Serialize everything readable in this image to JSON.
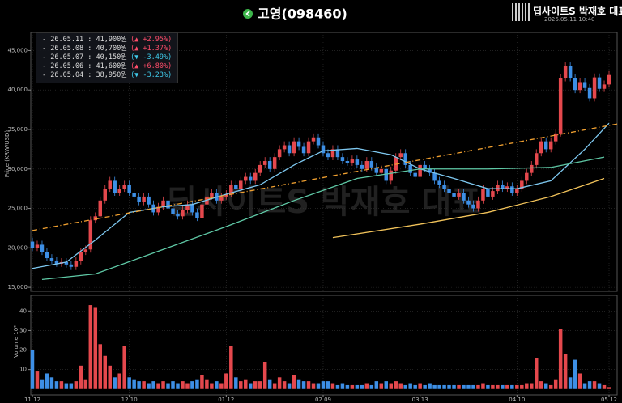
{
  "chart_data": {
    "type": "candlestick",
    "title": "고영(098460)",
    "watermark": "딥사이트S 박재호 대표",
    "brand": {
      "name": "딥사이트S 박재호 대표",
      "timestamp": "2026.05.11 10:40"
    },
    "ylabel": "Price (KRW/USD)",
    "volume_label": "Volume 10⁶",
    "legend": [
      {
        "text": "- 26.05.11 : 41,900원",
        "change": "(▲ +2.95%)",
        "color": "#ff4d6a"
      },
      {
        "text": "- 26.05.08 : 40,700원",
        "change": "(▲ +1.37%)",
        "color": "#ff4d6a"
      },
      {
        "text": "- 26.05.07 : 40,150원",
        "change": "(▼ -3.49%)",
        "color": "#3fc8e8"
      },
      {
        "text": "- 26.05.06 : 41,600원",
        "change": "(▲ +6.80%)",
        "color": "#ff4d6a"
      },
      {
        "text": "- 26.05.04 : 38,950원",
        "change": "(▼ -3.23%)",
        "color": "#3fc8e8"
      }
    ],
    "up_color": "#e5484d",
    "down_color": "#3d8fe6",
    "xlim": [
      0,
      119
    ],
    "xticks": [
      {
        "value": 0,
        "label": "11.12"
      },
      {
        "value": 20,
        "label": "12.10"
      },
      {
        "value": 40,
        "label": "01.12"
      },
      {
        "value": 60,
        "label": "02.09"
      },
      {
        "value": 80,
        "label": "03.13"
      },
      {
        "value": 100,
        "label": "04.10"
      },
      {
        "value": 119,
        "label": "05.12"
      }
    ],
    "ylim": [
      14500,
      47300
    ],
    "yticks": [
      {
        "value": 15000,
        "label": "15,000"
      },
      {
        "value": 20000,
        "label": "20,000"
      },
      {
        "value": 25000,
        "label": "25,000"
      },
      {
        "value": 30000,
        "label": "30,000"
      },
      {
        "value": 35000,
        "label": "35,000"
      },
      {
        "value": 40000,
        "label": "40,000"
      },
      {
        "value": 45000,
        "label": "45,000"
      }
    ],
    "volume_ylim": [
      -3,
      48
    ],
    "volume_yticks": [
      10,
      20,
      30,
      40
    ],
    "grid": true,
    "open": [
      20800,
      20000,
      20400,
      19500,
      18700,
      18400,
      18000,
      18200,
      17900,
      17600,
      18300,
      19500,
      19800,
      23500,
      24000,
      26000,
      27500,
      28500,
      27000,
      27500,
      28000,
      27000,
      26500,
      25800,
      26500,
      25500,
      24500,
      25200,
      26000,
      25000,
      24300,
      24000,
      24800,
      25500,
      24500,
      23800,
      25500,
      26500,
      27000,
      26000,
      26500,
      26800,
      28000,
      27500,
      28500,
      29000,
      28500,
      29500,
      30500,
      31000,
      30000,
      31500,
      32500,
      33000,
      32000,
      33500,
      32800,
      32000,
      33500,
      34000,
      33000,
      32000,
      31500,
      32500,
      31500,
      31000,
      30800,
      31200,
      30500,
      30000,
      31000,
      30200,
      29500,
      30000,
      28500,
      29800,
      31500,
      32000,
      30500,
      29500,
      29000,
      30500,
      30000,
      29500,
      28500,
      28000,
      27500,
      27000,
      26500,
      27000,
      26000,
      25500,
      25000,
      26000,
      27500,
      26500,
      27200,
      28000,
      27500,
      27800,
      27000,
      27500,
      28500,
      29500,
      30500,
      32000,
      33500,
      32500,
      33500,
      34500,
      41500,
      43000,
      41500,
      40000,
      41000,
      40250,
      38950,
      41600,
      40150,
      40700
    ],
    "high": [
      21300,
      20900,
      20900,
      20000,
      19200,
      18900,
      18700,
      18700,
      18400,
      18800,
      20000,
      20300,
      24000,
      24500,
      26500,
      28000,
      29000,
      29000,
      28000,
      28500,
      28500,
      27500,
      27000,
      27000,
      27000,
      26000,
      25700,
      26500,
      26500,
      25500,
      24800,
      25300,
      26000,
      26000,
      25000,
      26000,
      27000,
      27500,
      27500,
      27000,
      27300,
      28500,
      28500,
      29000,
      29500,
      29500,
      30000,
      31000,
      31500,
      31500,
      32000,
      33000,
      33500,
      33500,
      34000,
      34000,
      33300,
      34000,
      34500,
      34500,
      33500,
      32500,
      33000,
      33000,
      32000,
      31500,
      31700,
      31700,
      31000,
      31500,
      31500,
      30700,
      30500,
      30500,
      30300,
      32000,
      32500,
      32500,
      31000,
      30000,
      31000,
      31000,
      30500,
      30000,
      29000,
      28500,
      28000,
      27500,
      27500,
      27500,
      26500,
      26000,
      26500,
      28000,
      28000,
      27700,
      28500,
      28500,
      28300,
      28300,
      28000,
      29000,
      30000,
      31000,
      32500,
      34000,
      34000,
      34000,
      35000,
      42000,
      43500,
      43500,
      42000,
      41500,
      41500,
      40750,
      42100,
      42100,
      41200,
      42400
    ],
    "low": [
      19600,
      19600,
      19100,
      18300,
      18000,
      17600,
      17600,
      17500,
      17200,
      17200,
      17900,
      19100,
      19400,
      23100,
      23600,
      25600,
      27100,
      26600,
      26600,
      27100,
      26600,
      26100,
      25400,
      25400,
      25100,
      24100,
      24100,
      24800,
      24600,
      23900,
      23600,
      23600,
      24400,
      24100,
      23400,
      23400,
      25100,
      26100,
      25600,
      25600,
      26100,
      26400,
      27100,
      27100,
      28100,
      28100,
      28100,
      29100,
      30100,
      29600,
      29600,
      31100,
      32100,
      31600,
      31600,
      32400,
      31600,
      31600,
      33100,
      32600,
      31600,
      31100,
      31100,
      31100,
      30600,
      30400,
      30400,
      30100,
      29600,
      29600,
      29800,
      29100,
      29100,
      28100,
      28100,
      29400,
      31100,
      30100,
      29100,
      28600,
      28600,
      29600,
      29100,
      28100,
      27600,
      27100,
      26600,
      26100,
      26100,
      25600,
      25100,
      24600,
      24600,
      25600,
      26100,
      26100,
      26800,
      27100,
      27100,
      26600,
      26600,
      27100,
      28100,
      29100,
      30100,
      31600,
      32100,
      32100,
      33100,
      34100,
      41100,
      41100,
      39600,
      39600,
      39850,
      38550,
      38550,
      39750,
      39750,
      40300
    ],
    "close": [
      20000,
      20400,
      19500,
      18700,
      18400,
      18000,
      18200,
      17900,
      17600,
      18300,
      19500,
      19800,
      23500,
      24000,
      26000,
      27500,
      28500,
      27000,
      27500,
      28000,
      27000,
      26500,
      25800,
      26500,
      25500,
      24500,
      25200,
      26000,
      25000,
      24300,
      24000,
      24800,
      25500,
      24500,
      23800,
      25500,
      26500,
      27000,
      26000,
      26500,
      26800,
      28000,
      27500,
      28500,
      29000,
      28500,
      29500,
      30500,
      31000,
      30000,
      31500,
      32500,
      33000,
      32000,
      33500,
      32800,
      32000,
      33500,
      34000,
      33000,
      32000,
      31500,
      32500,
      31500,
      31000,
      30800,
      31200,
      30500,
      30000,
      31000,
      30200,
      29500,
      30000,
      28500,
      29800,
      31500,
      32000,
      30500,
      29500,
      29000,
      30500,
      30000,
      29500,
      28500,
      28000,
      27500,
      27000,
      26500,
      27000,
      26000,
      25500,
      25000,
      26000,
      27500,
      26500,
      27200,
      28000,
      27500,
      27800,
      27000,
      27500,
      28500,
      29500,
      30500,
      32000,
      33500,
      32500,
      33500,
      34500,
      41500,
      43000,
      41500,
      40000,
      41000,
      40250,
      38950,
      41600,
      40150,
      40700,
      41900
    ],
    "volume": [
      20,
      9,
      5,
      8,
      6,
      4,
      4,
      3,
      3,
      4,
      12,
      5,
      43,
      42,
      23,
      17,
      12,
      6,
      8,
      22,
      6,
      5,
      4,
      4,
      3,
      4,
      3,
      4,
      3,
      4,
      3,
      4,
      3,
      4,
      5,
      7,
      5,
      3,
      4,
      3,
      8,
      22,
      6,
      4,
      5,
      3,
      4,
      4,
      14,
      5,
      3,
      6,
      4,
      3,
      7,
      5,
      4,
      4,
      3,
      3,
      4,
      4,
      3,
      2,
      3,
      2,
      2,
      2,
      2,
      3,
      2,
      4,
      3,
      4,
      3,
      4,
      3,
      2,
      3,
      2,
      3,
      2,
      3,
      2,
      2,
      2,
      2,
      2,
      2,
      2,
      2,
      2,
      2,
      3,
      2,
      2,
      2,
      2,
      2,
      2,
      2,
      2,
      3,
      3,
      16,
      4,
      3,
      2,
      5,
      31,
      18,
      6,
      15,
      8,
      3,
      4,
      4,
      3,
      2,
      1
    ],
    "moving_averages": [
      {
        "color": "#7ec8f0",
        "x": [
          0,
          7,
          13,
          20,
          27,
          33,
          40,
          47,
          54,
          60,
          67,
          74,
          80,
          87,
          94,
          100,
          107,
          114,
          119
        ],
        "values": [
          17400,
          18200,
          21000,
          24500,
          25200,
          25500,
          26800,
          28000,
          30500,
          32300,
          32600,
          31800,
          30000,
          28800,
          27500,
          27500,
          28500,
          32500,
          35800
        ]
      },
      {
        "color": "#5fc9a6",
        "x": [
          2,
          13,
          27,
          40,
          54,
          67,
          80,
          94,
          107,
          118
        ],
        "values": [
          16000,
          16700,
          19800,
          22700,
          26000,
          28800,
          30000,
          30000,
          30200,
          31500
        ]
      },
      {
        "color": "#f2c35a",
        "x": [
          62,
          80,
          94,
          107,
          118
        ],
        "values": [
          21300,
          23000,
          24500,
          26500,
          28800
        ]
      }
    ],
    "trendline": {
      "color": "#f0a030",
      "start": 22200,
      "end": 35700
    }
  }
}
